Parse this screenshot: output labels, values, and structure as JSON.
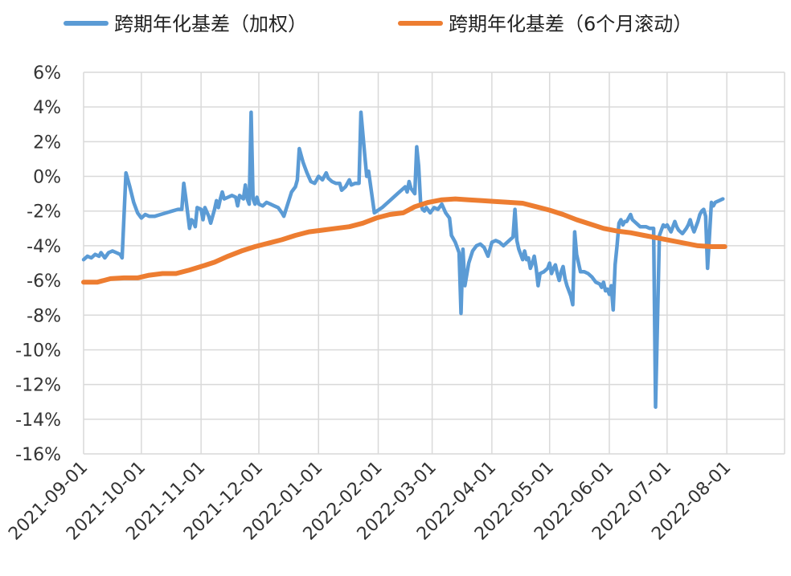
{
  "chart_data": {
    "type": "line",
    "title": "",
    "xlabel": "",
    "ylabel": "",
    "ylim": [
      -16,
      6
    ],
    "y_ticks": [
      "6%",
      "4%",
      "2%",
      "0%",
      "-2%",
      "-4%",
      "-6%",
      "-8%",
      "-10%",
      "-12%",
      "-14%",
      "-16%"
    ],
    "y_tick_values": [
      6,
      4,
      2,
      0,
      -2,
      -4,
      -6,
      -8,
      -10,
      -12,
      -14,
      -16
    ],
    "x_range": [
      "2021-09-01",
      "2022-08-31"
    ],
    "x_ticks": [
      "2021-09-01",
      "2021-10-01",
      "2021-11-01",
      "2021-12-01",
      "2022-01-01",
      "2022-02-01",
      "2022-03-01",
      "2022-04-01",
      "2022-05-01",
      "2022-06-01",
      "2022-07-01",
      "2022-08-01"
    ],
    "grid": true,
    "legend_position": "top",
    "series": [
      {
        "name": "跨期年化基差（加权）",
        "color": "#5b9bd5",
        "points": [
          [
            "2021-09-01",
            -4.8
          ],
          [
            "2021-09-03",
            -4.6
          ],
          [
            "2021-09-05",
            -4.7
          ],
          [
            "2021-09-07",
            -4.5
          ],
          [
            "2021-09-09",
            -4.6
          ],
          [
            "2021-09-10",
            -4.4
          ],
          [
            "2021-09-12",
            -4.7
          ],
          [
            "2021-09-14",
            -4.4
          ],
          [
            "2021-09-16",
            -4.3
          ],
          [
            "2021-09-18",
            -4.4
          ],
          [
            "2021-09-20",
            -4.5
          ],
          [
            "2021-09-21",
            -4.7
          ],
          [
            "2021-09-23",
            0.2
          ],
          [
            "2021-09-25",
            -0.6
          ],
          [
            "2021-09-27",
            -1.5
          ],
          [
            "2021-09-29",
            -2.1
          ],
          [
            "2021-10-01",
            -2.4
          ],
          [
            "2021-10-03",
            -2.2
          ],
          [
            "2021-10-05",
            -2.3
          ],
          [
            "2021-10-08",
            -2.3
          ],
          [
            "2021-10-11",
            -2.2
          ],
          [
            "2021-10-14",
            -2.1
          ],
          [
            "2021-10-17",
            -2.0
          ],
          [
            "2021-10-20",
            -1.9
          ],
          [
            "2021-10-22",
            -1.9
          ],
          [
            "2021-10-23",
            -0.4
          ],
          [
            "2021-10-24",
            -1.2
          ],
          [
            "2021-10-26",
            -3.0
          ],
          [
            "2021-10-27",
            -2.5
          ],
          [
            "2021-10-28",
            -2.6
          ],
          [
            "2021-10-29",
            -2.9
          ],
          [
            "2021-10-30",
            -1.8
          ],
          [
            "2021-11-01",
            -1.9
          ],
          [
            "2021-11-02",
            -2.5
          ],
          [
            "2021-11-03",
            -1.8
          ],
          [
            "2021-11-05",
            -2.3
          ],
          [
            "2021-11-06",
            -2.7
          ],
          [
            "2021-11-08",
            -1.9
          ],
          [
            "2021-11-09",
            -1.4
          ],
          [
            "2021-11-10",
            -1.8
          ],
          [
            "2021-11-11",
            -1.3
          ],
          [
            "2021-11-12",
            -0.9
          ],
          [
            "2021-11-13",
            -1.3
          ],
          [
            "2021-11-15",
            -1.2
          ],
          [
            "2021-11-17",
            -1.1
          ],
          [
            "2021-11-19",
            -1.2
          ],
          [
            "2021-11-20",
            -1.7
          ],
          [
            "2021-11-21",
            -1.1
          ],
          [
            "2021-11-23",
            -1.3
          ],
          [
            "2021-11-24",
            -0.5
          ],
          [
            "2021-11-25",
            -1.3
          ],
          [
            "2021-11-26",
            -1.6
          ],
          [
            "2021-11-27",
            3.7
          ],
          [
            "2021-11-28",
            -1.3
          ],
          [
            "2021-11-29",
            -1.6
          ],
          [
            "2021-11-30",
            -1.2
          ],
          [
            "2021-12-01",
            -1.6
          ],
          [
            "2021-12-03",
            -1.7
          ],
          [
            "2021-12-05",
            -1.5
          ],
          [
            "2021-12-07",
            -1.6
          ],
          [
            "2021-12-09",
            -1.7
          ],
          [
            "2021-12-11",
            -1.8
          ],
          [
            "2021-12-13",
            -2.1
          ],
          [
            "2021-12-14",
            -2.3
          ],
          [
            "2021-12-16",
            -1.6
          ],
          [
            "2021-12-18",
            -0.9
          ],
          [
            "2021-12-20",
            -0.6
          ],
          [
            "2021-12-21",
            -0.2
          ],
          [
            "2021-12-22",
            1.6
          ],
          [
            "2021-12-24",
            0.8
          ],
          [
            "2021-12-26",
            0.2
          ],
          [
            "2021-12-28",
            -0.3
          ],
          [
            "2021-12-30",
            -0.4
          ],
          [
            "2022-01-01",
            0.0
          ],
          [
            "2022-01-03",
            -0.2
          ],
          [
            "2022-01-05",
            0.2
          ],
          [
            "2022-01-06",
            -0.1
          ],
          [
            "2022-01-08",
            -0.3
          ],
          [
            "2022-01-10",
            -0.4
          ],
          [
            "2022-01-12",
            -0.4
          ],
          [
            "2022-01-13",
            -0.8
          ],
          [
            "2022-01-15",
            -0.6
          ],
          [
            "2022-01-17",
            -0.2
          ],
          [
            "2022-01-18",
            -0.5
          ],
          [
            "2022-01-20",
            -0.4
          ],
          [
            "2022-01-22",
            -0.4
          ],
          [
            "2022-01-23",
            3.7
          ],
          [
            "2022-01-25",
            1.2
          ],
          [
            "2022-01-26",
            0.0
          ],
          [
            "2022-01-27",
            0.3
          ],
          [
            "2022-01-28",
            -0.5
          ],
          [
            "2022-01-30",
            -2.1
          ],
          [
            "2022-02-03",
            -1.8
          ],
          [
            "2022-02-07",
            -1.4
          ],
          [
            "2022-02-11",
            -1.0
          ],
          [
            "2022-02-14",
            -0.7
          ],
          [
            "2022-02-15",
            -0.6
          ],
          [
            "2022-02-16",
            -0.9
          ],
          [
            "2022-02-17",
            -0.3
          ],
          [
            "2022-02-18",
            -0.7
          ],
          [
            "2022-02-20",
            -1.0
          ],
          [
            "2022-02-21",
            1.7
          ],
          [
            "2022-02-22",
            0.6
          ],
          [
            "2022-02-23",
            -1.5
          ],
          [
            "2022-02-24",
            -1.9
          ],
          [
            "2022-02-25",
            -2.0
          ],
          [
            "2022-02-26",
            -1.8
          ],
          [
            "2022-02-28",
            -2.1
          ],
          [
            "2022-03-02",
            -1.8
          ],
          [
            "2022-03-04",
            -1.9
          ],
          [
            "2022-03-06",
            -1.6
          ],
          [
            "2022-03-08",
            -2.1
          ],
          [
            "2022-03-10",
            -2.4
          ],
          [
            "2022-03-11",
            -3.4
          ],
          [
            "2022-03-13",
            -3.8
          ],
          [
            "2022-03-15",
            -4.4
          ],
          [
            "2022-03-16",
            -7.9
          ],
          [
            "2022-03-17",
            -4.2
          ],
          [
            "2022-03-18",
            -6.3
          ],
          [
            "2022-03-20",
            -5.0
          ],
          [
            "2022-03-22",
            -4.3
          ],
          [
            "2022-03-24",
            -4.0
          ],
          [
            "2022-03-26",
            -3.9
          ],
          [
            "2022-03-28",
            -4.1
          ],
          [
            "2022-03-30",
            -4.6
          ],
          [
            "2022-04-01",
            -3.8
          ],
          [
            "2022-04-03",
            -3.7
          ],
          [
            "2022-04-05",
            -3.8
          ],
          [
            "2022-04-07",
            -4.0
          ],
          [
            "2022-04-10",
            -3.7
          ],
          [
            "2022-04-12",
            -3.5
          ],
          [
            "2022-04-13",
            -1.9
          ],
          [
            "2022-04-14",
            -3.7
          ],
          [
            "2022-04-15",
            -4.2
          ],
          [
            "2022-04-17",
            -4.8
          ],
          [
            "2022-04-18",
            -4.3
          ],
          [
            "2022-04-19",
            -4.8
          ],
          [
            "2022-04-20",
            -4.7
          ],
          [
            "2022-04-21",
            -5.3
          ],
          [
            "2022-04-22",
            -5.0
          ],
          [
            "2022-04-23",
            -4.6
          ],
          [
            "2022-04-24",
            -5.3
          ],
          [
            "2022-04-25",
            -6.3
          ],
          [
            "2022-04-26",
            -5.6
          ],
          [
            "2022-04-28",
            -5.5
          ],
          [
            "2022-04-30",
            -5.3
          ],
          [
            "2022-05-01",
            -5.0
          ],
          [
            "2022-05-02",
            -5.6
          ],
          [
            "2022-05-03",
            -5.3
          ],
          [
            "2022-05-04",
            -5.1
          ],
          [
            "2022-05-05",
            -5.6
          ],
          [
            "2022-05-06",
            -6.0
          ],
          [
            "2022-05-07",
            -5.5
          ],
          [
            "2022-05-08",
            -5.2
          ],
          [
            "2022-05-09",
            -5.9
          ],
          [
            "2022-05-10",
            -6.3
          ],
          [
            "2022-05-12",
            -6.9
          ],
          [
            "2022-05-13",
            -7.4
          ],
          [
            "2022-05-14",
            -3.2
          ],
          [
            "2022-05-15",
            -4.5
          ],
          [
            "2022-05-17",
            -5.5
          ],
          [
            "2022-05-19",
            -5.5
          ],
          [
            "2022-05-21",
            -5.6
          ],
          [
            "2022-05-23",
            -5.8
          ],
          [
            "2022-05-25",
            -6.1
          ],
          [
            "2022-05-27",
            -6.2
          ],
          [
            "2022-05-28",
            -6.4
          ],
          [
            "2022-05-29",
            -6.1
          ],
          [
            "2022-05-30",
            -6.6
          ],
          [
            "2022-05-31",
            -6.5
          ],
          [
            "2022-06-01",
            -6.8
          ],
          [
            "2022-06-02",
            -6.3
          ],
          [
            "2022-06-03",
            -7.7
          ],
          [
            "2022-06-04",
            -5.1
          ],
          [
            "2022-06-05",
            -4.0
          ],
          [
            "2022-06-06",
            -2.7
          ],
          [
            "2022-06-07",
            -2.5
          ],
          [
            "2022-06-08",
            -2.8
          ],
          [
            "2022-06-09",
            -2.6
          ],
          [
            "2022-06-10",
            -2.6
          ],
          [
            "2022-06-11",
            -2.4
          ],
          [
            "2022-06-12",
            -2.2
          ],
          [
            "2022-06-13",
            -2.5
          ],
          [
            "2022-06-15",
            -2.7
          ],
          [
            "2022-06-17",
            -2.9
          ],
          [
            "2022-06-20",
            -2.9
          ],
          [
            "2022-06-22",
            -3.0
          ],
          [
            "2022-06-24",
            -3.0
          ],
          [
            "2022-06-25",
            -13.3
          ],
          [
            "2022-06-27",
            -3.4
          ],
          [
            "2022-06-28",
            -3.1
          ],
          [
            "2022-06-29",
            -2.8
          ],
          [
            "2022-06-30",
            -2.9
          ],
          [
            "2022-07-01",
            -2.8
          ],
          [
            "2022-07-03",
            -3.2
          ],
          [
            "2022-07-05",
            -2.6
          ],
          [
            "2022-07-06",
            -2.9
          ],
          [
            "2022-07-07",
            -3.1
          ],
          [
            "2022-07-09",
            -3.3
          ],
          [
            "2022-07-11",
            -3.0
          ],
          [
            "2022-07-12",
            -2.8
          ],
          [
            "2022-07-13",
            -2.5
          ],
          [
            "2022-07-14",
            -2.9
          ],
          [
            "2022-07-15",
            -3.2
          ],
          [
            "2022-07-16",
            -2.9
          ],
          [
            "2022-07-17",
            -2.6
          ],
          [
            "2022-07-18",
            -2.2
          ],
          [
            "2022-07-19",
            -2.0
          ],
          [
            "2022-07-20",
            -1.9
          ],
          [
            "2022-07-21",
            -2.3
          ],
          [
            "2022-07-22",
            -5.3
          ],
          [
            "2022-07-24",
            -1.5
          ],
          [
            "2022-07-25",
            -1.7
          ],
          [
            "2022-07-26",
            -1.5
          ],
          [
            "2022-07-28",
            -1.4
          ],
          [
            "2022-07-30",
            -1.3
          ]
        ]
      },
      {
        "name": "跨期年化基差（6个月滚动）",
        "color": "#ed7d31",
        "points": [
          [
            "2021-09-01",
            -6.1
          ],
          [
            "2021-09-08",
            -6.1
          ],
          [
            "2021-09-15",
            -5.9
          ],
          [
            "2021-09-22",
            -5.85
          ],
          [
            "2021-09-29",
            -5.85
          ],
          [
            "2021-10-05",
            -5.7
          ],
          [
            "2021-10-12",
            -5.6
          ],
          [
            "2021-10-19",
            -5.6
          ],
          [
            "2021-10-26",
            -5.4
          ],
          [
            "2021-11-01",
            -5.2
          ],
          [
            "2021-11-08",
            -4.95
          ],
          [
            "2021-11-15",
            -4.6
          ],
          [
            "2021-11-22",
            -4.3
          ],
          [
            "2021-11-29",
            -4.05
          ],
          [
            "2021-12-06",
            -3.85
          ],
          [
            "2021-12-13",
            -3.65
          ],
          [
            "2021-12-20",
            -3.4
          ],
          [
            "2021-12-27",
            -3.2
          ],
          [
            "2022-01-03",
            -3.1
          ],
          [
            "2022-01-10",
            -3.0
          ],
          [
            "2022-01-17",
            -2.9
          ],
          [
            "2022-01-24",
            -2.7
          ],
          [
            "2022-01-31",
            -2.4
          ],
          [
            "2022-02-07",
            -2.2
          ],
          [
            "2022-02-14",
            -2.1
          ],
          [
            "2022-02-20",
            -1.75
          ],
          [
            "2022-02-27",
            -1.5
          ],
          [
            "2022-03-06",
            -1.35
          ],
          [
            "2022-03-13",
            -1.3
          ],
          [
            "2022-03-20",
            -1.35
          ],
          [
            "2022-03-27",
            -1.4
          ],
          [
            "2022-04-03",
            -1.45
          ],
          [
            "2022-04-10",
            -1.5
          ],
          [
            "2022-04-17",
            -1.55
          ],
          [
            "2022-04-24",
            -1.75
          ],
          [
            "2022-05-01",
            -1.95
          ],
          [
            "2022-05-08",
            -2.2
          ],
          [
            "2022-05-15",
            -2.5
          ],
          [
            "2022-05-22",
            -2.75
          ],
          [
            "2022-05-29",
            -3.0
          ],
          [
            "2022-06-05",
            -3.15
          ],
          [
            "2022-06-12",
            -3.25
          ],
          [
            "2022-06-19",
            -3.4
          ],
          [
            "2022-06-26",
            -3.55
          ],
          [
            "2022-07-03",
            -3.7
          ],
          [
            "2022-07-10",
            -3.85
          ],
          [
            "2022-07-17",
            -4.0
          ],
          [
            "2022-07-24",
            -4.05
          ],
          [
            "2022-07-31",
            -4.05
          ]
        ]
      }
    ]
  }
}
